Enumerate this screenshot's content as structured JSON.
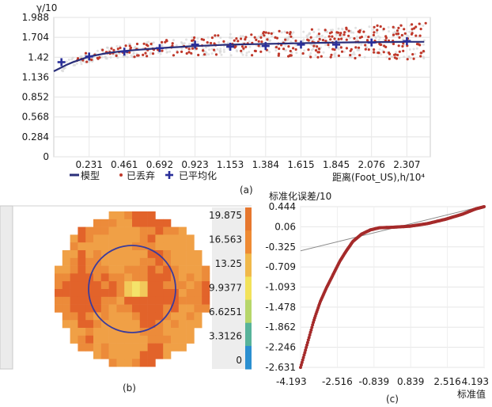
{
  "chart_data": [
    {
      "panel": "(a)",
      "type": "scatter",
      "ylabel": "γ/10",
      "xlabel": "距离(Foot_US),h/10⁴",
      "y_ticks": [
        "0",
        "0.284",
        "0.568",
        "0.852",
        "1.136",
        "1.42",
        "1.704",
        "1.988"
      ],
      "x_ticks": [
        "0.231",
        "0.461",
        "0.692",
        "0.923",
        "1.153",
        "1.384",
        "1.615",
        "1.845",
        "2.076",
        "2.307"
      ],
      "ylim": [
        0,
        1.988
      ],
      "xlim": [
        0,
        2.46
      ],
      "grid": true,
      "legend": {
        "position": "bottom-left",
        "entries": [
          "模型",
          "已丢弃",
          "已平均化"
        ]
      },
      "series": [
        {
          "name": "已平均化",
          "x": [
            0.05,
            0.231,
            0.461,
            0.692,
            0.923,
            1.153,
            1.384,
            1.615,
            1.845,
            2.076,
            2.307
          ],
          "y": [
            1.35,
            1.43,
            1.5,
            1.55,
            1.6,
            1.57,
            1.58,
            1.6,
            1.6,
            1.63,
            1.65
          ]
        },
        {
          "name": "模型",
          "x": [
            0.0,
            0.1,
            0.231,
            0.35,
            0.461,
            0.692,
            0.923,
            1.153,
            1.384,
            1.615,
            1.845,
            2.076,
            2.307,
            2.42
          ],
          "y": [
            1.22,
            1.33,
            1.43,
            1.48,
            1.51,
            1.55,
            1.58,
            1.6,
            1.61,
            1.62,
            1.63,
            1.635,
            1.64,
            1.64
          ]
        }
      ]
    },
    {
      "panel": "(b)",
      "type": "heatmap",
      "colorbar_ticks": [
        "19.875",
        "16.563",
        "13.25",
        "9.9377",
        "6.6251",
        "3.3126",
        "0"
      ],
      "colorbar_colors": [
        "#e6772e",
        "#ee8a33",
        "#f0b84a",
        "#f2e25a",
        "#b6d66a",
        "#57b39a",
        "#2b8fd0"
      ]
    },
    {
      "panel": "(c)",
      "type": "scatter",
      "ylabel": "标准化误差/10",
      "xlabel": "标准值",
      "y_ticks": [
        "0.444",
        "0.06",
        "-0.325",
        "-0.709",
        "-1.093",
        "-1.478",
        "-1.862",
        "-2.246",
        "-2.631"
      ],
      "x_ticks": [
        "-4.193",
        "-2.516",
        "-0.839",
        "0.839",
        "2.516",
        "4.193"
      ],
      "xlim": [
        -4.193,
        4.193
      ],
      "ylim": [
        -2.631,
        0.444
      ],
      "grid": true
    }
  ]
}
